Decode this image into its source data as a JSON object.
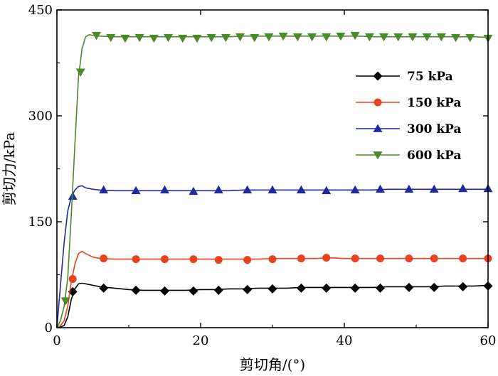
{
  "chart_data": {
    "type": "line",
    "title": "",
    "xlabel": "剪切角/(°)",
    "ylabel": "剪切力/kPa",
    "xlim": [
      0,
      60
    ],
    "ylim": [
      0,
      450
    ],
    "x_ticks": [
      0,
      20,
      40,
      60
    ],
    "y_ticks": [
      0,
      150,
      300,
      450
    ],
    "x_tick_labels": [
      "0",
      "20",
      "40",
      "60"
    ],
    "y_tick_labels": [
      "0",
      "150",
      "300",
      "450"
    ],
    "grid": false,
    "legend_position": "top-right",
    "series": [
      {
        "name": "75 kPa",
        "color": "#000000",
        "marker": "diamond",
        "curve": [
          [
            0,
            0
          ],
          [
            0.5,
            1
          ],
          [
            1,
            3
          ],
          [
            1.5,
            15
          ],
          [
            2,
            40
          ],
          [
            2.5,
            55
          ],
          [
            3,
            62
          ],
          [
            3.5,
            63
          ],
          [
            4,
            62
          ],
          [
            5,
            60
          ],
          [
            6,
            58
          ],
          [
            8,
            56
          ],
          [
            10,
            54
          ],
          [
            12,
            53
          ],
          [
            14,
            53
          ],
          [
            16,
            53
          ],
          [
            18,
            53
          ],
          [
            20,
            54
          ],
          [
            22,
            54
          ],
          [
            24,
            55
          ],
          [
            26,
            55
          ],
          [
            28,
            56
          ],
          [
            30,
            56
          ],
          [
            32,
            56
          ],
          [
            34,
            57
          ],
          [
            36,
            57
          ],
          [
            38,
            57
          ],
          [
            40,
            57
          ],
          [
            42,
            57
          ],
          [
            44,
            57
          ],
          [
            46,
            58
          ],
          [
            48,
            58
          ],
          [
            50,
            58
          ],
          [
            52,
            58
          ],
          [
            54,
            59
          ],
          [
            56,
            59
          ],
          [
            58,
            59
          ],
          [
            60,
            60
          ]
        ],
        "points": [
          [
            2.2,
            51
          ],
          [
            6.5,
            56
          ],
          [
            11,
            53
          ],
          [
            15,
            52
          ],
          [
            19,
            52
          ],
          [
            22.5,
            53
          ],
          [
            26.5,
            54
          ],
          [
            30,
            55
          ],
          [
            34,
            56
          ],
          [
            37.5,
            56
          ],
          [
            41.5,
            56
          ],
          [
            45,
            56
          ],
          [
            49,
            57
          ],
          [
            52.5,
            57
          ],
          [
            56.5,
            58
          ],
          [
            60,
            59
          ]
        ]
      },
      {
        "name": "150 kPa",
        "color": "#e8421e",
        "marker": "circle",
        "curve": [
          [
            0,
            0
          ],
          [
            0.5,
            3
          ],
          [
            1,
            10
          ],
          [
            1.5,
            30
          ],
          [
            2,
            65
          ],
          [
            2.5,
            90
          ],
          [
            3,
            105
          ],
          [
            3.5,
            108
          ],
          [
            4,
            105
          ],
          [
            5,
            100
          ],
          [
            6,
            98
          ],
          [
            8,
            97
          ],
          [
            10,
            97
          ],
          [
            12,
            97
          ],
          [
            14,
            97
          ],
          [
            16,
            97
          ],
          [
            18,
            97
          ],
          [
            20,
            97
          ],
          [
            22,
            97
          ],
          [
            24,
            97
          ],
          [
            26,
            97
          ],
          [
            28,
            97
          ],
          [
            30,
            98
          ],
          [
            32,
            98
          ],
          [
            34,
            98
          ],
          [
            36,
            98
          ],
          [
            38,
            99
          ],
          [
            40,
            98
          ],
          [
            42,
            98
          ],
          [
            44,
            98
          ],
          [
            46,
            98
          ],
          [
            48,
            98
          ],
          [
            50,
            98
          ],
          [
            52,
            98
          ],
          [
            54,
            98
          ],
          [
            56,
            98
          ],
          [
            58,
            98
          ],
          [
            60,
            98
          ]
        ],
        "points": [
          [
            2.2,
            69
          ],
          [
            6.5,
            98
          ],
          [
            11,
            97
          ],
          [
            15,
            97
          ],
          [
            19,
            97
          ],
          [
            22.5,
            96
          ],
          [
            26.5,
            96
          ],
          [
            30,
            97
          ],
          [
            34,
            98
          ],
          [
            37.5,
            99
          ],
          [
            41.5,
            98
          ],
          [
            45,
            98
          ],
          [
            49,
            98
          ],
          [
            52.5,
            98
          ],
          [
            56.5,
            98
          ],
          [
            60,
            98
          ]
        ]
      },
      {
        "name": "300 kPa",
        "color": "#1f2a9e",
        "marker": "triangle-up",
        "curve": [
          [
            0,
            0
          ],
          [
            0.5,
            60
          ],
          [
            1,
            120
          ],
          [
            1.5,
            165
          ],
          [
            2,
            185
          ],
          [
            2.5,
            195
          ],
          [
            3,
            200
          ],
          [
            3.5,
            201
          ],
          [
            4,
            198
          ],
          [
            5,
            196
          ],
          [
            6,
            195
          ],
          [
            8,
            194
          ],
          [
            10,
            194
          ],
          [
            12,
            194
          ],
          [
            14,
            194
          ],
          [
            16,
            194
          ],
          [
            18,
            194
          ],
          [
            20,
            194
          ],
          [
            22,
            194
          ],
          [
            24,
            194
          ],
          [
            26,
            195
          ],
          [
            28,
            195
          ],
          [
            30,
            195
          ],
          [
            32,
            195
          ],
          [
            34,
            195
          ],
          [
            36,
            195
          ],
          [
            38,
            195
          ],
          [
            40,
            195
          ],
          [
            42,
            195
          ],
          [
            44,
            195
          ],
          [
            46,
            196
          ],
          [
            48,
            196
          ],
          [
            50,
            196
          ],
          [
            52,
            196
          ],
          [
            54,
            196
          ],
          [
            56,
            196
          ],
          [
            58,
            196
          ],
          [
            60,
            196
          ]
        ],
        "points": [
          [
            2.2,
            186
          ],
          [
            6.5,
            195
          ],
          [
            11,
            194
          ],
          [
            15,
            195
          ],
          [
            19,
            193
          ],
          [
            22.5,
            195
          ],
          [
            26.5,
            195
          ],
          [
            30,
            195
          ],
          [
            34,
            195
          ],
          [
            37.5,
            194
          ],
          [
            41.5,
            195
          ],
          [
            45,
            196
          ],
          [
            49,
            196
          ],
          [
            52.5,
            196
          ],
          [
            56.5,
            197
          ],
          [
            60,
            197
          ]
        ]
      },
      {
        "name": "600 kPa",
        "color": "#4a8a2a",
        "marker": "triangle-down",
        "curve": [
          [
            0,
            0
          ],
          [
            0.5,
            10
          ],
          [
            1,
            30
          ],
          [
            1.5,
            70
          ],
          [
            2,
            160
          ],
          [
            2.5,
            260
          ],
          [
            3,
            355
          ],
          [
            3.5,
            395
          ],
          [
            4,
            412
          ],
          [
            4.5,
            415
          ],
          [
            5,
            414
          ],
          [
            6,
            413
          ],
          [
            8,
            412
          ],
          [
            10,
            412
          ],
          [
            12,
            412
          ],
          [
            14,
            412
          ],
          [
            16,
            412
          ],
          [
            18,
            412
          ],
          [
            20,
            412
          ],
          [
            22,
            412
          ],
          [
            24,
            412
          ],
          [
            26,
            413
          ],
          [
            28,
            413
          ],
          [
            30,
            413
          ],
          [
            32,
            413
          ],
          [
            34,
            413
          ],
          [
            36,
            413
          ],
          [
            38,
            413
          ],
          [
            40,
            413
          ],
          [
            42,
            413
          ],
          [
            44,
            412
          ],
          [
            46,
            412
          ],
          [
            48,
            412
          ],
          [
            50,
            412
          ],
          [
            52,
            412
          ],
          [
            54,
            412
          ],
          [
            56,
            412
          ],
          [
            58,
            412
          ],
          [
            60,
            411
          ]
        ],
        "points": [
          [
            1.2,
            38
          ],
          [
            3.3,
            362
          ],
          [
            5.5,
            414
          ],
          [
            7.5,
            411
          ],
          [
            9.5,
            410
          ],
          [
            11.5,
            411
          ],
          [
            13.5,
            410
          ],
          [
            15.5,
            411
          ],
          [
            17.5,
            410
          ],
          [
            19.5,
            410
          ],
          [
            21.5,
            411
          ],
          [
            23.5,
            411
          ],
          [
            25.5,
            412
          ],
          [
            27.5,
            411
          ],
          [
            29.5,
            412
          ],
          [
            31.5,
            413
          ],
          [
            33.5,
            412
          ],
          [
            35.5,
            412
          ],
          [
            37.5,
            412
          ],
          [
            39.5,
            413
          ],
          [
            41.5,
            414
          ],
          [
            43.5,
            412
          ],
          [
            45.5,
            412
          ],
          [
            47.5,
            412
          ],
          [
            49.5,
            412
          ],
          [
            51.5,
            412
          ],
          [
            53.5,
            412
          ],
          [
            55.5,
            411
          ],
          [
            57.5,
            411
          ],
          [
            60,
            410
          ]
        ]
      }
    ]
  }
}
